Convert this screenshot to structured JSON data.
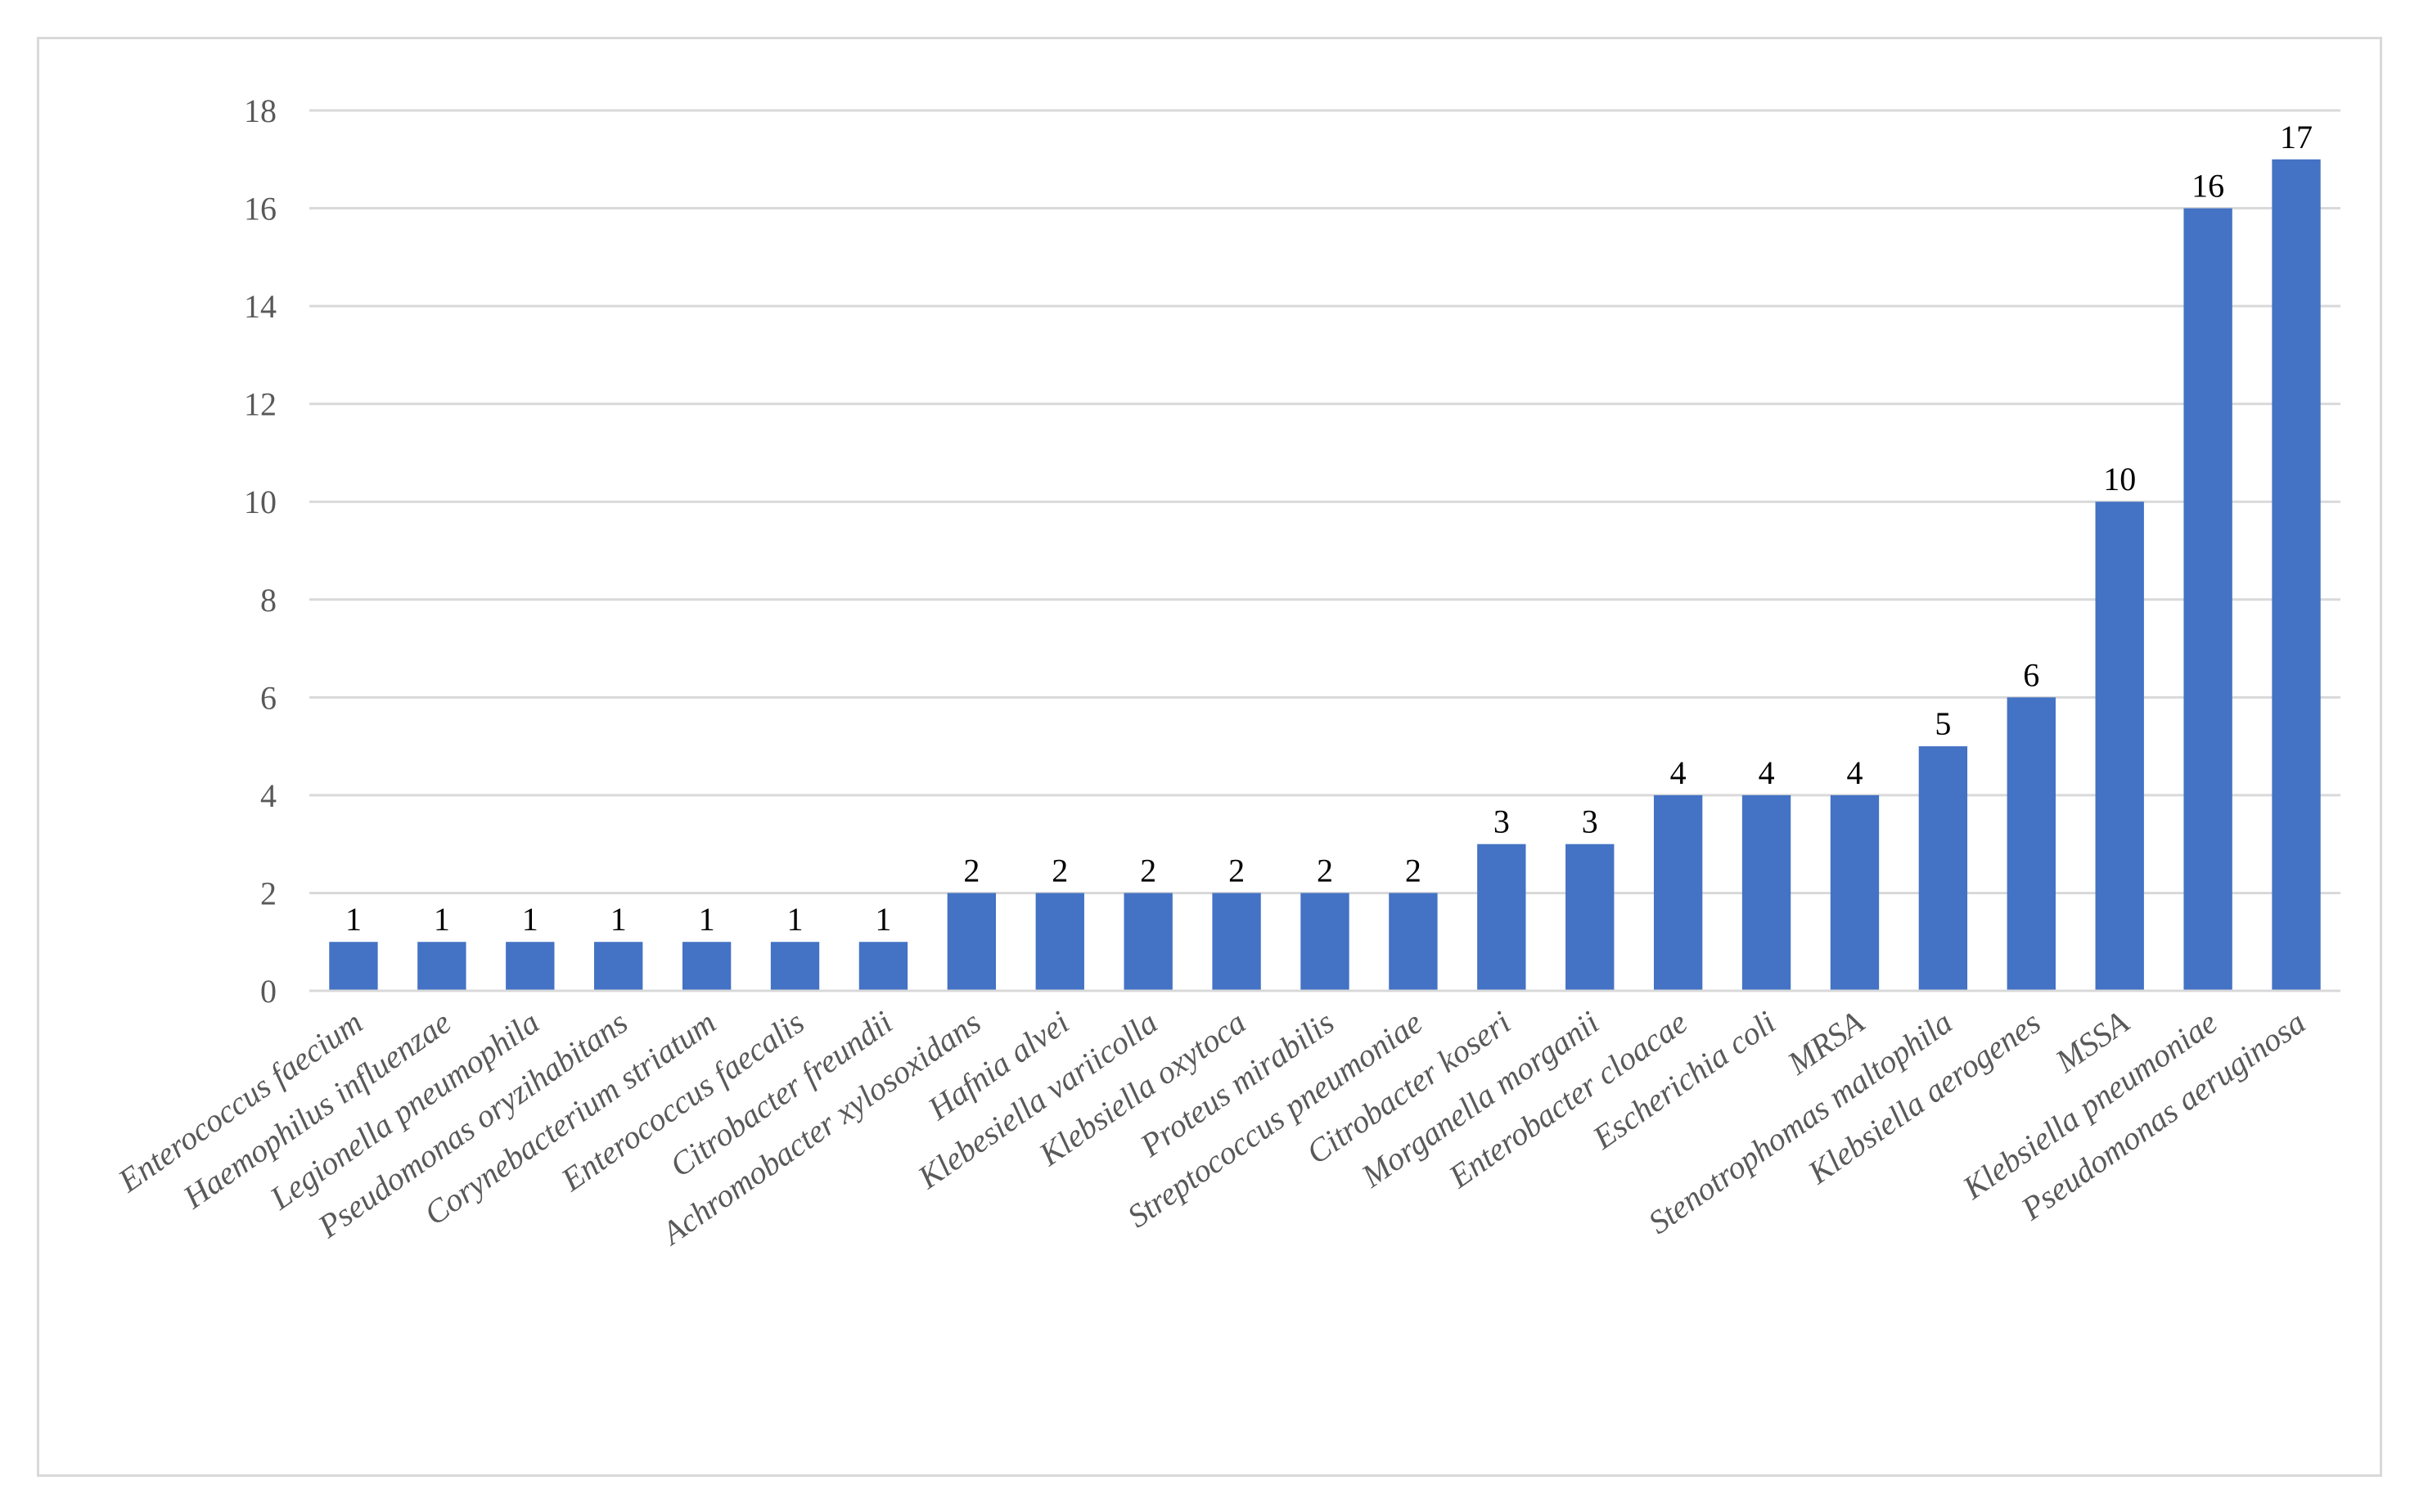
{
  "chart_data": {
    "type": "bar",
    "title": "",
    "xlabel": "",
    "ylabel": "",
    "ylim": [
      0,
      18
    ],
    "yticks": [
      0,
      2,
      4,
      6,
      8,
      10,
      12,
      14,
      16,
      18
    ],
    "grid": true,
    "legend": "none",
    "bar_color": "#4472c4",
    "categories": [
      "Enterococcus faecium",
      "Haemophilus influenzae",
      "Legionella pneumophila",
      "Pseudomonas oryzihabitans",
      "Corynebacterium striatum",
      "Enterococcus faecalis",
      "Citrobacter freundii",
      "Achromobacter xylosoxidans",
      "Hafnia alvei",
      "Klebesiella variicolla",
      "Klebsiella oxytoca",
      "Proteus mirabilis",
      "Streptococcus pneumoniae",
      "Citrobacter koseri",
      "Morganella morganii",
      "Enterobacter cloacae",
      "Escherichia coli",
      "MRSA",
      "Stenotrophomas maltophila",
      "Klebsiella aerogenes",
      "MSSA",
      "Klebsiella pneumoniae",
      "Pseudomonas aeruginosa"
    ],
    "values": [
      1,
      1,
      1,
      1,
      1,
      1,
      1,
      2,
      2,
      2,
      2,
      2,
      2,
      3,
      3,
      4,
      4,
      4,
      5,
      6,
      10,
      16,
      17
    ],
    "data_labels": [
      "1",
      "1",
      "1",
      "1",
      "1",
      "1",
      "1",
      "2",
      "2",
      "2",
      "2",
      "2",
      "2",
      "3",
      "3",
      "4",
      "4",
      "4",
      "5",
      "6",
      "10",
      "16",
      "17"
    ]
  }
}
